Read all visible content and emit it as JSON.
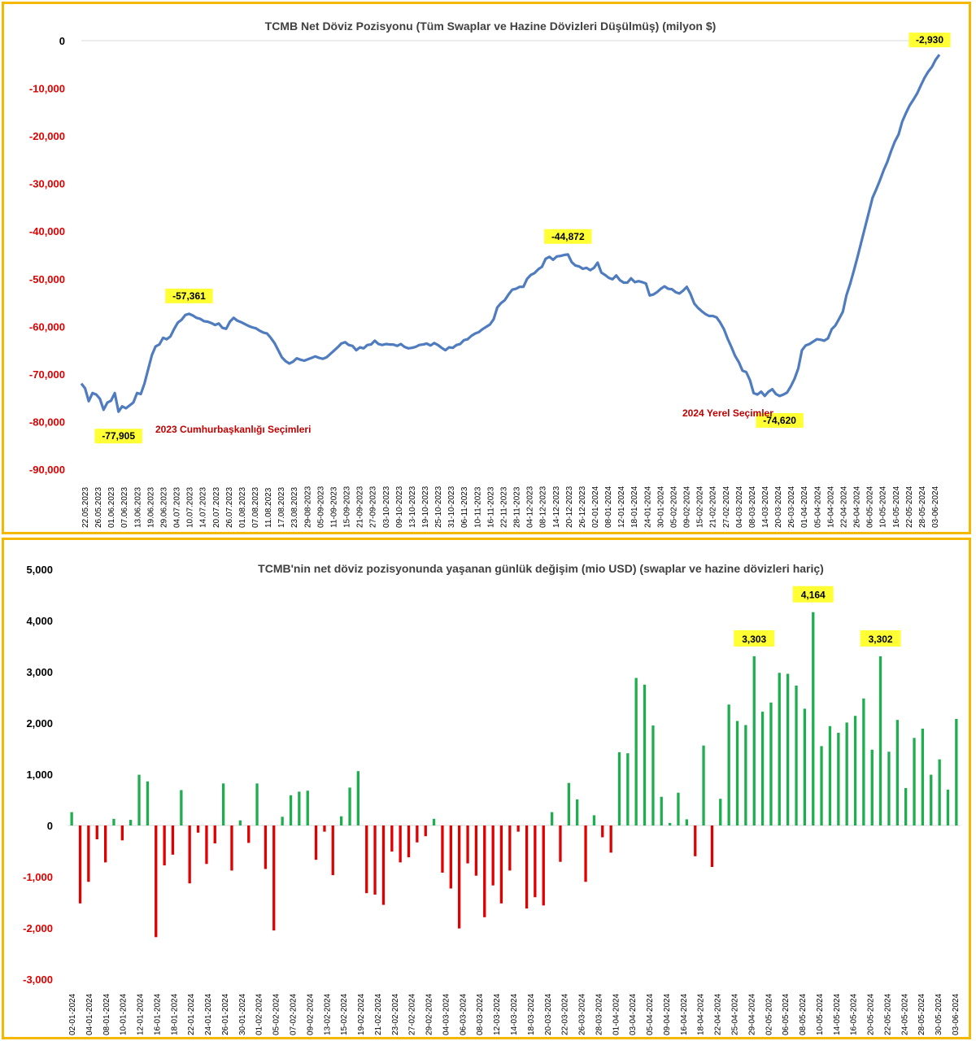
{
  "colors": {
    "border": "#f5b800",
    "line": "#4f7bbf",
    "positive_tick": "#000000",
    "negative_tick": "#e00000",
    "bar_positive": "#1fae4f",
    "bar_negative": "#e00000",
    "callout_bg": "#ffff33",
    "annotation": "#c00000"
  },
  "chart_data": [
    {
      "type": "line",
      "title": "TCMB Net Döviz Pozisyonu (Tüm Swaplar ve Hazine Dövizleri Düşülmüş) (milyon $)",
      "xlabel": "",
      "ylabel": "",
      "ylim": [
        -90000,
        0
      ],
      "yticks": [
        0,
        -10000,
        -20000,
        -30000,
        -40000,
        -50000,
        -60000,
        -70000,
        -80000,
        -90000
      ],
      "ytick_labels": [
        "0",
        "-10,000",
        "-20,000",
        "-30,000",
        "-40,000",
        "-50,000",
        "-60,000",
        "-70,000",
        "-80,000",
        "-90,000"
      ],
      "x_tick_labels": [
        "22.05.2023",
        "26.05.2023",
        "01.06.2023",
        "07.06.2023",
        "13.06.2023",
        "19.06.2023",
        "29.06.2023",
        "04.07.2023",
        "10.07.2023",
        "14.07.2023",
        "20.07.2023",
        "26.07.2023",
        "01.08.2023",
        "07.08.2023",
        "11.08.2023",
        "17.08.2023",
        "23.08.2023",
        "29-08-2023",
        "05-09-2023",
        "11-09-2023",
        "15-09-2023",
        "21-09-2023",
        "27-09-2023",
        "03-10-2023",
        "09-10-2023",
        "13-10-2023",
        "19-10-2023",
        "25-10-2023",
        "31-10-2023",
        "06-11-2023",
        "10-11-2023",
        "16-11-2023",
        "22-11-2023",
        "28-11-2023",
        "04-12-2023",
        "08-12-2023",
        "14-12-2023",
        "20-12-2023",
        "26-12-2023",
        "02-01-2024",
        "08-01-2024",
        "12-01-2024",
        "18-01-2024",
        "24-01-2024",
        "30-01-2024",
        "05-02-2024",
        "09-02-2024",
        "15-02-2024",
        "21-02-2024",
        "27-02-2024",
        "04-03-2024",
        "08-03-2024",
        "14-03-2024",
        "20-03-2024",
        "26-03-2024",
        "01-04-2024",
        "05-04-2024",
        "16-04-2024",
        "22-04-2024",
        "26-04-2024",
        "06-05-2024",
        "10-05-2024",
        "16-05-2024",
        "22-05-2024",
        "28-05-2024",
        "03-06-2024"
      ],
      "series": [
        {
          "values": [
            -72000,
            -73000,
            -75700,
            -74000,
            -74300,
            -75200,
            -77500,
            -76000,
            -75600,
            -74000,
            -77905,
            -76800,
            -77200,
            -76600,
            -76000,
            -74000,
            -74200,
            -72000,
            -69000,
            -66000,
            -64200,
            -63800,
            -62400,
            -62700,
            -62100,
            -60500,
            -59200,
            -58600,
            -57600,
            -57361,
            -57700,
            -58200,
            -58400,
            -58900,
            -59000,
            -59300,
            -59700,
            -59400,
            -60300,
            -60500,
            -59000,
            -58200,
            -58800,
            -59100,
            -59500,
            -59900,
            -60200,
            -60400,
            -60900,
            -61300,
            -61500,
            -62400,
            -63500,
            -65000,
            -66500,
            -67300,
            -67800,
            -67400,
            -66700,
            -67000,
            -67200,
            -66900,
            -66600,
            -66300,
            -66600,
            -66800,
            -66500,
            -65800,
            -65100,
            -64400,
            -63600,
            -63300,
            -63900,
            -64100,
            -65000,
            -64400,
            -64600,
            -63900,
            -63800,
            -63000,
            -63700,
            -63900,
            -63700,
            -63800,
            -63800,
            -64100,
            -63700,
            -64300,
            -64600,
            -64500,
            -64300,
            -63900,
            -63800,
            -63600,
            -64000,
            -63500,
            -63900,
            -64500,
            -65000,
            -64400,
            -64500,
            -63900,
            -63700,
            -62900,
            -62700,
            -62000,
            -61500,
            -61200,
            -60600,
            -60100,
            -59600,
            -58500,
            -56000,
            -55100,
            -54500,
            -53300,
            -52300,
            -52100,
            -51700,
            -51700,
            -50000,
            -49200,
            -48800,
            -48000,
            -47500,
            -45800,
            -45400,
            -46000,
            -45300,
            -45200,
            -45000,
            -44872,
            -46500,
            -47200,
            -47400,
            -47900,
            -47700,
            -48200,
            -47700,
            -46600,
            -48700,
            -49200,
            -49800,
            -50100,
            -49300,
            -50300,
            -50800,
            -50800,
            -49900,
            -50700,
            -50500,
            -50700,
            -51000,
            -53500,
            -53300,
            -52800,
            -52100,
            -51600,
            -52100,
            -52200,
            -52800,
            -53100,
            -52500,
            -51700,
            -53200,
            -55200,
            -56100,
            -56800,
            -57400,
            -57800,
            -57800,
            -58100,
            -59200,
            -60600,
            -62600,
            -64300,
            -66200,
            -67500,
            -69300,
            -69600,
            -71300,
            -74000,
            -74300,
            -73700,
            -74600,
            -73700,
            -73200,
            -74200,
            -74620,
            -74300,
            -73900,
            -72600,
            -71000,
            -68800,
            -65000,
            -64000,
            -63700,
            -63200,
            -62700,
            -62800,
            -63000,
            -62500,
            -60600,
            -59800,
            -58400,
            -56900,
            -53400,
            -51000,
            -48200,
            -45300,
            -42200,
            -39100,
            -36100,
            -33000,
            -31200,
            -29300,
            -27200,
            -25400,
            -23200,
            -21200,
            -19700,
            -17000,
            -15200,
            -13600,
            -12400,
            -11100,
            -9400,
            -7800,
            -6500,
            -5500,
            -4000,
            -2930
          ]
        }
      ],
      "callouts": [
        {
          "label": "-77,905",
          "value": -77905
        },
        {
          "label": "-57,361",
          "value": -57361
        },
        {
          "label": "-44,872",
          "value": -44872
        },
        {
          "label": "-74,620",
          "value": -74620
        },
        {
          "label": "-2,930",
          "value": -2930
        }
      ],
      "annotations": [
        "2023 Cumhurbaşkanlığı Seçimleri",
        "2024 Yerel Seçimler"
      ]
    },
    {
      "type": "bar",
      "title": "TCMB'nin net döviz pozisyonunda yaşanan günlük değişim (mio USD) (swaplar ve hazine dövizleri hariç)",
      "xlabel": "",
      "ylabel": "",
      "ylim": [
        -3000,
        5000
      ],
      "yticks": [
        5000,
        4000,
        3000,
        2000,
        1000,
        0,
        -1000,
        -2000,
        -3000
      ],
      "ytick_labels": [
        "5,000",
        "4,000",
        "3,000",
        "2,000",
        "1,000",
        "0",
        "-1,000",
        "-2,000",
        "-3,000"
      ],
      "x_tick_labels": [
        "02-01-2024",
        "04-01-2024",
        "08-01-2024",
        "10-01-2024",
        "12-01-2024",
        "16-01-2024",
        "18-01-2024",
        "22-01-2024",
        "24-01-2024",
        "26-01-2024",
        "30-01-2024",
        "01-02-2024",
        "05-02-2024",
        "07-02-2024",
        "09-02-2024",
        "13-02-2024",
        "15-02-2024",
        "19-02-2024",
        "21-02-2024",
        "23-02-2024",
        "27-02-2024",
        "29-02-2024",
        "04-03-2024",
        "06-03-2024",
        "08-03-2024",
        "12-03-2024",
        "14-03-2024",
        "18-03-2024",
        "20-03-2024",
        "22-03-2024",
        "26-03-2024",
        "28-03-2024",
        "01-04-2024",
        "03-04-2024",
        "05-04-2024",
        "09-04-2024",
        "16-04-2024",
        "18-04-2024",
        "22-04-2024",
        "25-04-2024",
        "29-04-2024",
        "02-05-2024",
        "06-05-2024",
        "08-05-2024",
        "10-05-2024",
        "14-05-2024",
        "16-05-2024",
        "20-05-2024",
        "22-05-2024",
        "24-05-2024",
        "28-05-2024",
        "30-05-2024",
        "03-06-2024"
      ],
      "values": [
        260,
        -1520,
        -1100,
        -270,
        -720,
        130,
        -290,
        110,
        990,
        860,
        -2180,
        -780,
        -570,
        690,
        -1130,
        -140,
        -750,
        -350,
        820,
        -880,
        100,
        -340,
        820,
        -850,
        -2050,
        170,
        590,
        660,
        680,
        -670,
        -120,
        -970,
        180,
        740,
        1060,
        -1320,
        -1350,
        -1550,
        -510,
        -720,
        -620,
        -330,
        -210,
        130,
        -920,
        -1230,
        -2010,
        -740,
        -980,
        -1790,
        -1170,
        -1520,
        -880,
        -120,
        -1620,
        -1400,
        -1560,
        260,
        -710,
        830,
        510,
        -1100,
        200,
        -230,
        -530,
        1430,
        1410,
        2880,
        2750,
        1950,
        560,
        50,
        640,
        120,
        -600,
        1560,
        -810,
        520,
        2360,
        2040,
        1960,
        3303,
        2220,
        2400,
        2980,
        2960,
        2730,
        2280,
        4164,
        1550,
        1940,
        1810,
        2010,
        2140,
        2480,
        1480,
        3302,
        1440,
        2060,
        730,
        1710,
        1890,
        990,
        1290,
        700,
        2080
      ],
      "callouts": [
        {
          "label": "3,303",
          "value": 3303
        },
        {
          "label": "4,164",
          "value": 4164
        },
        {
          "label": "3,302",
          "value": 3302
        }
      ]
    }
  ]
}
